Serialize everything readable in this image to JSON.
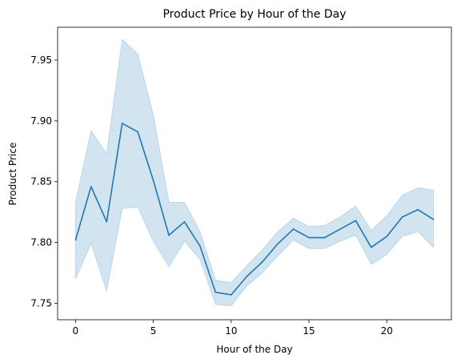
{
  "chart_data": {
    "type": "line",
    "title": "Product Price by Hour of the Day",
    "xlabel": "Hour of the Day",
    "ylabel": "Product Price",
    "xlim": [
      -1.15,
      24.15
    ],
    "ylim": [
      7.7365,
      7.977
    ],
    "xticks": [
      0,
      5,
      10,
      15,
      20
    ],
    "xtick_labels": [
      "0",
      "5",
      "10",
      "15",
      "20"
    ],
    "yticks": [
      7.75,
      7.8,
      7.85,
      7.9,
      7.95
    ],
    "ytick_labels": [
      "7.75",
      "7.80",
      "7.85",
      "7.90",
      "7.95"
    ],
    "grid": false,
    "colors": {
      "line": "#1f77b4",
      "band": "#1f77b4"
    },
    "series": [
      {
        "x": [
          0,
          1,
          2,
          3,
          4,
          5,
          6,
          7,
          8,
          9,
          10,
          11,
          12,
          13,
          14,
          15,
          16,
          17,
          18,
          19,
          20,
          21,
          22,
          23
        ],
        "values": [
          7.802,
          7.846,
          7.817,
          7.898,
          7.891,
          7.851,
          7.806,
          7.817,
          7.797,
          7.759,
          7.757,
          7.772,
          7.784,
          7.799,
          7.811,
          7.804,
          7.804,
          7.811,
          7.818,
          7.796,
          7.805,
          7.821,
          7.827,
          7.819
        ],
        "lower": [
          7.77,
          7.799,
          7.76,
          7.828,
          7.829,
          7.801,
          7.78,
          7.801,
          7.786,
          7.749,
          7.748,
          7.764,
          7.775,
          7.789,
          7.802,
          7.795,
          7.795,
          7.801,
          7.806,
          7.782,
          7.79,
          7.805,
          7.809,
          7.796
        ],
        "upper": [
          7.833,
          7.892,
          7.873,
          7.967,
          7.955,
          7.905,
          7.833,
          7.833,
          7.809,
          7.769,
          7.767,
          7.781,
          7.794,
          7.809,
          7.82,
          7.813,
          7.814,
          7.821,
          7.83,
          7.81,
          7.822,
          7.839,
          7.845,
          7.843
        ]
      }
    ]
  }
}
